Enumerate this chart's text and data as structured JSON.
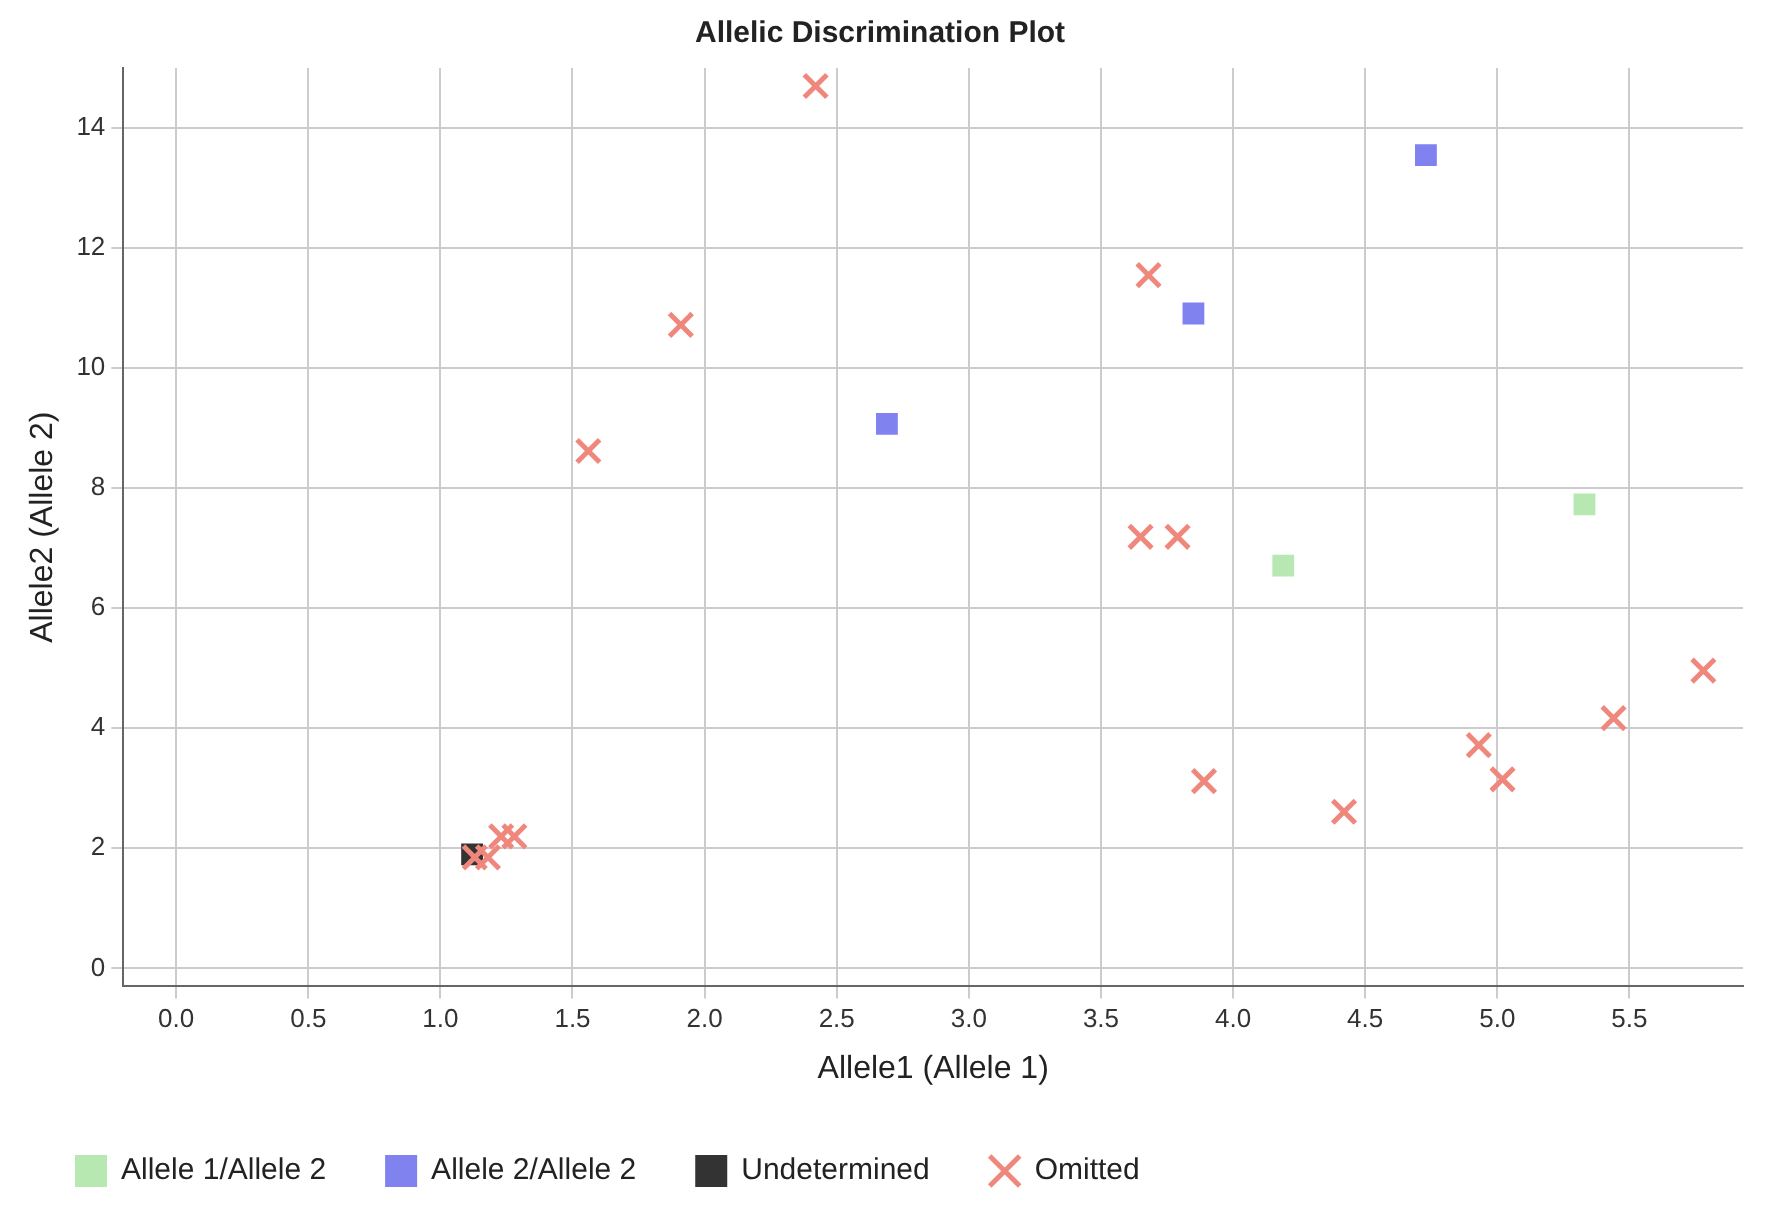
{
  "chart_data": {
    "type": "scatter",
    "title": "Allelic Discrimination Plot",
    "xlabel": "Allele1 (Allele 1)",
    "ylabel": "Allele2 (Allele 2)",
    "xlim": [
      -0.2,
      5.93
    ],
    "ylim": [
      -0.3,
      15
    ],
    "xticks": [
      {
        "value": 0,
        "label": "0.0"
      },
      {
        "value": 0.5,
        "label": "0.5"
      },
      {
        "value": 1,
        "label": "1.0"
      },
      {
        "value": 1.5,
        "label": "1.5"
      },
      {
        "value": 2,
        "label": "2.0"
      },
      {
        "value": 2.5,
        "label": "2.5"
      },
      {
        "value": 3,
        "label": "3.0"
      },
      {
        "value": 3.5,
        "label": "3.5"
      },
      {
        "value": 4,
        "label": "4.0"
      },
      {
        "value": 4.5,
        "label": "4.5"
      },
      {
        "value": 5,
        "label": "5.0"
      },
      {
        "value": 5.5,
        "label": "5.5"
      }
    ],
    "yticks": [
      0,
      2,
      4,
      6,
      8,
      10,
      12,
      14
    ],
    "grid": true,
    "legend": "bottom left",
    "series": [
      {
        "name": "Allele 1/Allele 2",
        "color": "#b8e8b2",
        "marker": "square",
        "x": [
          4.19,
          5.33
        ],
        "values": [
          6.71,
          7.73
        ]
      },
      {
        "name": "Allele 2/Allele 2",
        "color": "#7f82ef",
        "marker": "square",
        "x": [
          2.69,
          3.85,
          4.73
        ],
        "values": [
          9.07,
          10.91,
          13.55
        ]
      },
      {
        "name": "Undetermined",
        "color": "#333333",
        "marker": "square",
        "x": [
          1.12
        ],
        "values": [
          1.9
        ]
      },
      {
        "name": "Omitted",
        "color": "#f0877c",
        "marker": "cross",
        "x": [
          1.13,
          1.18,
          1.23,
          1.28,
          1.56,
          1.91,
          2.42,
          3.65,
          3.68,
          3.79,
          3.89,
          4.42,
          4.93,
          5.02,
          5.44,
          5.78
        ],
        "values": [
          1.85,
          1.85,
          2.2,
          2.2,
          8.62,
          10.72,
          14.7,
          7.19,
          11.55,
          7.19,
          3.12,
          2.61,
          3.72,
          3.15,
          4.17,
          4.96
        ]
      }
    ]
  }
}
